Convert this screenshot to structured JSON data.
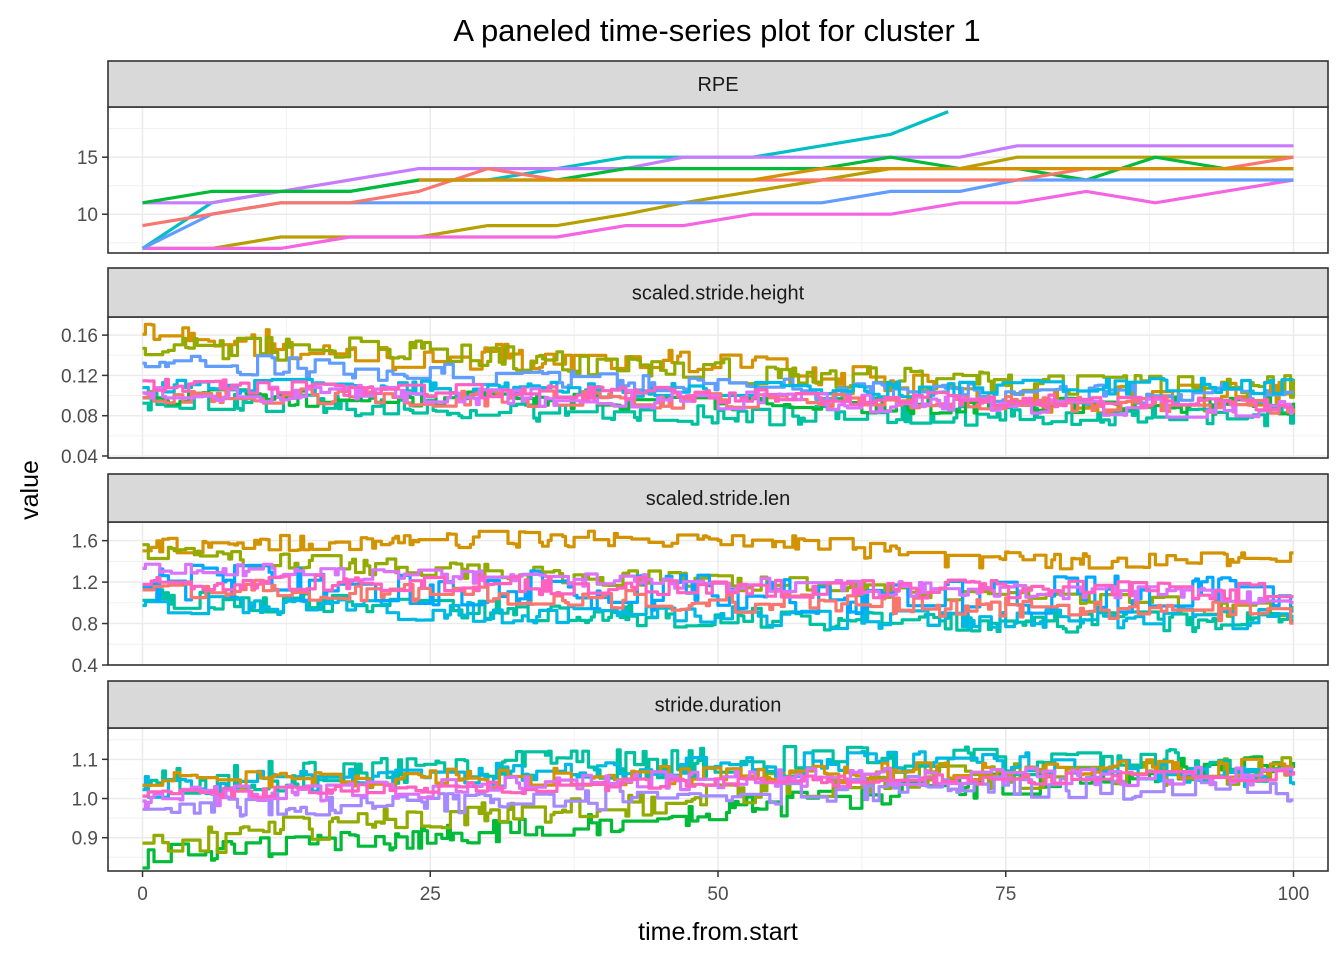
{
  "chart_data": {
    "type": "line",
    "title": "A paneled time-series plot for cluster 1",
    "xlabel": "time.from.start",
    "ylabel": "value",
    "xlim": [
      -3,
      103
    ],
    "xticks": [
      0,
      25,
      50,
      75,
      100
    ],
    "grid": true,
    "legend": "none",
    "series_colors": [
      "#F8766D",
      "#D39200",
      "#93AA00",
      "#00BA38",
      "#00C19F",
      "#00B9E3",
      "#619CFF",
      "#DB72FB",
      "#FF61C3",
      "#A58AFF"
    ],
    "panels": [
      {
        "name": "RPE",
        "ylim": [
          6.6,
          19.4
        ],
        "yticks": [
          10,
          15
        ],
        "tick_labels": [
          "10",
          "15"
        ],
        "series": [
          {
            "color": "#00BFC4",
            "x": [
              0,
              6,
              12,
              18,
              24,
              30,
              36,
              42,
              47,
              53,
              59,
              65,
              70
            ],
            "values": [
              7,
              11,
              12,
              12,
              13,
              13,
              14,
              15,
              15,
              15,
              16,
              17,
              19
            ]
          },
          {
            "color": "#C77CFF",
            "x": [
              0,
              6,
              12,
              18,
              24,
              30,
              36,
              42,
              47,
              53,
              59,
              65,
              71,
              76,
              82,
              88,
              94,
              100
            ],
            "values": [
              11,
              11,
              12,
              13,
              14,
              14,
              14,
              14,
              15,
              15,
              15,
              15,
              15,
              16,
              16,
              16,
              16,
              16
            ]
          },
          {
            "color": "#B79F00",
            "x": [
              0,
              6,
              12,
              18,
              24,
              30,
              36,
              42,
              47,
              53,
              59,
              65,
              71,
              76,
              82,
              88,
              94,
              100
            ],
            "values": [
              7,
              7,
              8,
              8,
              8,
              9,
              9,
              10,
              11,
              12,
              13,
              14,
              14,
              15,
              15,
              15,
              15,
              15
            ]
          },
          {
            "color": "#00BA38",
            "x": [
              0,
              6,
              12,
              18,
              24,
              30,
              36,
              42,
              47,
              53,
              59,
              65,
              71,
              76,
              82,
              88,
              94,
              100
            ],
            "values": [
              11,
              12,
              12,
              12,
              13,
              13,
              13,
              14,
              14,
              14,
              14,
              15,
              14,
              14,
              13,
              15,
              14,
              14
            ]
          },
          {
            "color": "#F564E3",
            "x": [
              0,
              6,
              12,
              18,
              24,
              30,
              36,
              42,
              47,
              53,
              59,
              65,
              71,
              76,
              82,
              88,
              94,
              100
            ],
            "values": [
              7,
              7,
              7,
              8,
              8,
              8,
              8,
              9,
              9,
              10,
              10,
              10,
              11,
              11,
              12,
              11,
              12,
              13
            ]
          },
          {
            "color": "#619CFF",
            "x": [
              0,
              6,
              12,
              18,
              24,
              30,
              36,
              42,
              47,
              53,
              59,
              65,
              71,
              76,
              82,
              88,
              94,
              100
            ],
            "values": [
              7,
              10,
              11,
              11,
              11,
              11,
              11,
              11,
              11,
              11,
              11,
              12,
              12,
              13,
              13,
              13,
              13,
              13
            ]
          },
          {
            "color": "#F8766D",
            "x": [
              0,
              6,
              12,
              18,
              24,
              30,
              36,
              42,
              47,
              53,
              59,
              65,
              71,
              76,
              82,
              88,
              94,
              100
            ],
            "values": [
              9,
              10,
              11,
              11,
              12,
              14,
              13,
              13,
              13,
              13,
              13,
              13,
              13,
              13,
              14,
              14,
              14,
              15
            ]
          },
          {
            "color": "#D89000",
            "x": [
              24,
              30,
              36,
              42,
              47,
              53,
              59,
              65,
              71,
              76,
              82,
              88,
              94,
              100
            ],
            "values": [
              13,
              13,
              13,
              13,
              13,
              13,
              14,
              14,
              14,
              14,
              14,
              14,
              14,
              14
            ]
          }
        ]
      },
      {
        "name": "scaled.stride.height",
        "ylim": [
          0.038,
          0.178
        ],
        "yticks": [
          0.04,
          0.08,
          0.12,
          0.16
        ],
        "tick_labels": [
          "0.04",
          "0.08",
          "0.12",
          "0.16"
        ],
        "series": [
          {
            "color": "#D39200",
            "trend": [
              [
                0,
                0.165
              ],
              [
                20,
                0.14
              ],
              [
                40,
                0.135
              ],
              [
                55,
                0.125
              ],
              [
                65,
                0.11
              ],
              [
                80,
                0.095
              ],
              [
                100,
                0.1
              ]
            ],
            "noise": 0.014,
            "seed": 11
          },
          {
            "color": "#93AA00",
            "trend": [
              [
                0,
                0.15
              ],
              [
                20,
                0.145
              ],
              [
                40,
                0.13
              ],
              [
                60,
                0.12
              ],
              [
                80,
                0.11
              ],
              [
                100,
                0.11
              ]
            ],
            "noise": 0.012,
            "seed": 12
          },
          {
            "color": "#00C19F",
            "trend": [
              [
                0,
                0.095
              ],
              [
                30,
                0.085
              ],
              [
                50,
                0.08
              ],
              [
                75,
                0.08
              ],
              [
                100,
                0.08
              ]
            ],
            "noise": 0.01,
            "seed": 13
          },
          {
            "color": "#00BA38",
            "trend": [
              [
                0,
                0.1
              ],
              [
                40,
                0.095
              ],
              [
                70,
                0.09
              ],
              [
                100,
                0.09
              ]
            ],
            "noise": 0.009,
            "seed": 14
          },
          {
            "color": "#619CFF",
            "trend": [
              [
                0,
                0.135
              ],
              [
                20,
                0.125
              ],
              [
                50,
                0.11
              ],
              [
                80,
                0.1
              ],
              [
                100,
                0.105
              ]
            ],
            "noise": 0.011,
            "seed": 15
          },
          {
            "color": "#00B9E3",
            "trend": [
              [
                0,
                0.11
              ],
              [
                50,
                0.105
              ],
              [
                100,
                0.11
              ]
            ],
            "noise": 0.008,
            "seed": 16
          },
          {
            "color": "#F8766D",
            "trend": [
              [
                0,
                0.1
              ],
              [
                50,
                0.095
              ],
              [
                100,
                0.09
              ]
            ],
            "noise": 0.008,
            "seed": 17
          },
          {
            "color": "#DB72FB",
            "trend": [
              [
                0,
                0.105
              ],
              [
                50,
                0.095
              ],
              [
                100,
                0.085
              ]
            ],
            "noise": 0.009,
            "seed": 18
          },
          {
            "color": "#FF61C3",
            "trend": [
              [
                0,
                0.11
              ],
              [
                50,
                0.1
              ],
              [
                100,
                0.09
              ]
            ],
            "noise": 0.007,
            "seed": 19
          }
        ]
      },
      {
        "name": "scaled.stride.len",
        "ylim": [
          0.4,
          1.78
        ],
        "yticks": [
          0.4,
          0.8,
          1.2,
          1.6
        ],
        "tick_labels": [
          "0.4",
          "0.8",
          "1.2",
          "1.6"
        ],
        "series": [
          {
            "color": "#D39200",
            "trend": [
              [
                0,
                1.55
              ],
              [
                30,
                1.62
              ],
              [
                55,
                1.6
              ],
              [
                70,
                1.42
              ],
              [
                85,
                1.4
              ],
              [
                100,
                1.45
              ]
            ],
            "noise": 0.08,
            "seed": 21
          },
          {
            "color": "#93AA00",
            "trend": [
              [
                0,
                1.5
              ],
              [
                20,
                1.35
              ],
              [
                50,
                1.2
              ],
              [
                80,
                1.05
              ],
              [
                100,
                0.9
              ]
            ],
            "noise": 0.08,
            "seed": 22
          },
          {
            "color": "#00C19F",
            "trend": [
              [
                0,
                1.05
              ],
              [
                25,
                0.95
              ],
              [
                50,
                0.85
              ],
              [
                75,
                0.82
              ],
              [
                100,
                0.8
              ]
            ],
            "noise": 0.1,
            "seed": 23
          },
          {
            "color": "#00B9E3",
            "trend": [
              [
                0,
                1.0
              ],
              [
                30,
                0.9
              ],
              [
                60,
                0.85
              ],
              [
                100,
                0.85
              ]
            ],
            "noise": 0.1,
            "seed": 24
          },
          {
            "color": "#00A9FF",
            "trend": [
              [
                0,
                1.2
              ],
              [
                30,
                1.15
              ],
              [
                60,
                1.05
              ],
              [
                100,
                1.1
              ]
            ],
            "noise": 0.18,
            "seed": 25
          },
          {
            "color": "#F8766D",
            "trend": [
              [
                0,
                1.15
              ],
              [
                50,
                1.0
              ],
              [
                100,
                0.9
              ]
            ],
            "noise": 0.1,
            "seed": 26
          },
          {
            "color": "#DB72FB",
            "trend": [
              [
                0,
                1.35
              ],
              [
                30,
                1.25
              ],
              [
                60,
                1.15
              ],
              [
                100,
                1.05
              ]
            ],
            "noise": 0.07,
            "seed": 27
          },
          {
            "color": "#FF61C3",
            "trend": [
              [
                0,
                1.2
              ],
              [
                50,
                1.15
              ],
              [
                100,
                1.1
              ]
            ],
            "noise": 0.09,
            "seed": 28
          }
        ]
      },
      {
        "name": "stride.duration",
        "ylim": [
          0.815,
          1.18
        ],
        "yticks": [
          0.9,
          1.0,
          1.1
        ],
        "tick_labels": [
          "0.9",
          "1.0",
          "1.1"
        ],
        "series": [
          {
            "color": "#00BA38",
            "trend": [
              [
                0,
                0.85
              ],
              [
                25,
                0.9
              ],
              [
                45,
                0.95
              ],
              [
                60,
                1.0
              ],
              [
                80,
                1.05
              ],
              [
                100,
                1.1
              ]
            ],
            "noise": 0.03,
            "seed": 31
          },
          {
            "color": "#93AA00",
            "trend": [
              [
                0,
                0.87
              ],
              [
                20,
                0.95
              ],
              [
                40,
                0.98
              ],
              [
                60,
                1.05
              ],
              [
                100,
                1.07
              ]
            ],
            "noise": 0.035,
            "seed": 32
          },
          {
            "color": "#00C19F",
            "trend": [
              [
                0,
                1.04
              ],
              [
                30,
                1.08
              ],
              [
                60,
                1.1
              ],
              [
                100,
                1.08
              ]
            ],
            "noise": 0.04,
            "seed": 33
          },
          {
            "color": "#00B9E3",
            "trend": [
              [
                0,
                1.03
              ],
              [
                40,
                1.07
              ],
              [
                70,
                1.1
              ],
              [
                100,
                1.05
              ]
            ],
            "noise": 0.03,
            "seed": 34
          },
          {
            "color": "#D39200",
            "trend": [
              [
                0,
                1.04
              ],
              [
                50,
                1.06
              ],
              [
                100,
                1.08
              ]
            ],
            "noise": 0.025,
            "seed": 35
          },
          {
            "color": "#A58AFF",
            "trend": [
              [
                0,
                0.98
              ],
              [
                40,
                1.0
              ],
              [
                70,
                1.03
              ],
              [
                100,
                1.02
              ]
            ],
            "noise": 0.03,
            "seed": 36
          },
          {
            "color": "#DB72FB",
            "trend": [
              [
                0,
                1.0
              ],
              [
                50,
                1.05
              ],
              [
                100,
                1.06
              ]
            ],
            "noise": 0.025,
            "seed": 37
          },
          {
            "color": "#FF61C3",
            "trend": [
              [
                0,
                1.01
              ],
              [
                50,
                1.04
              ],
              [
                100,
                1.06
              ]
            ],
            "noise": 0.015,
            "seed": 38
          }
        ]
      }
    ]
  }
}
